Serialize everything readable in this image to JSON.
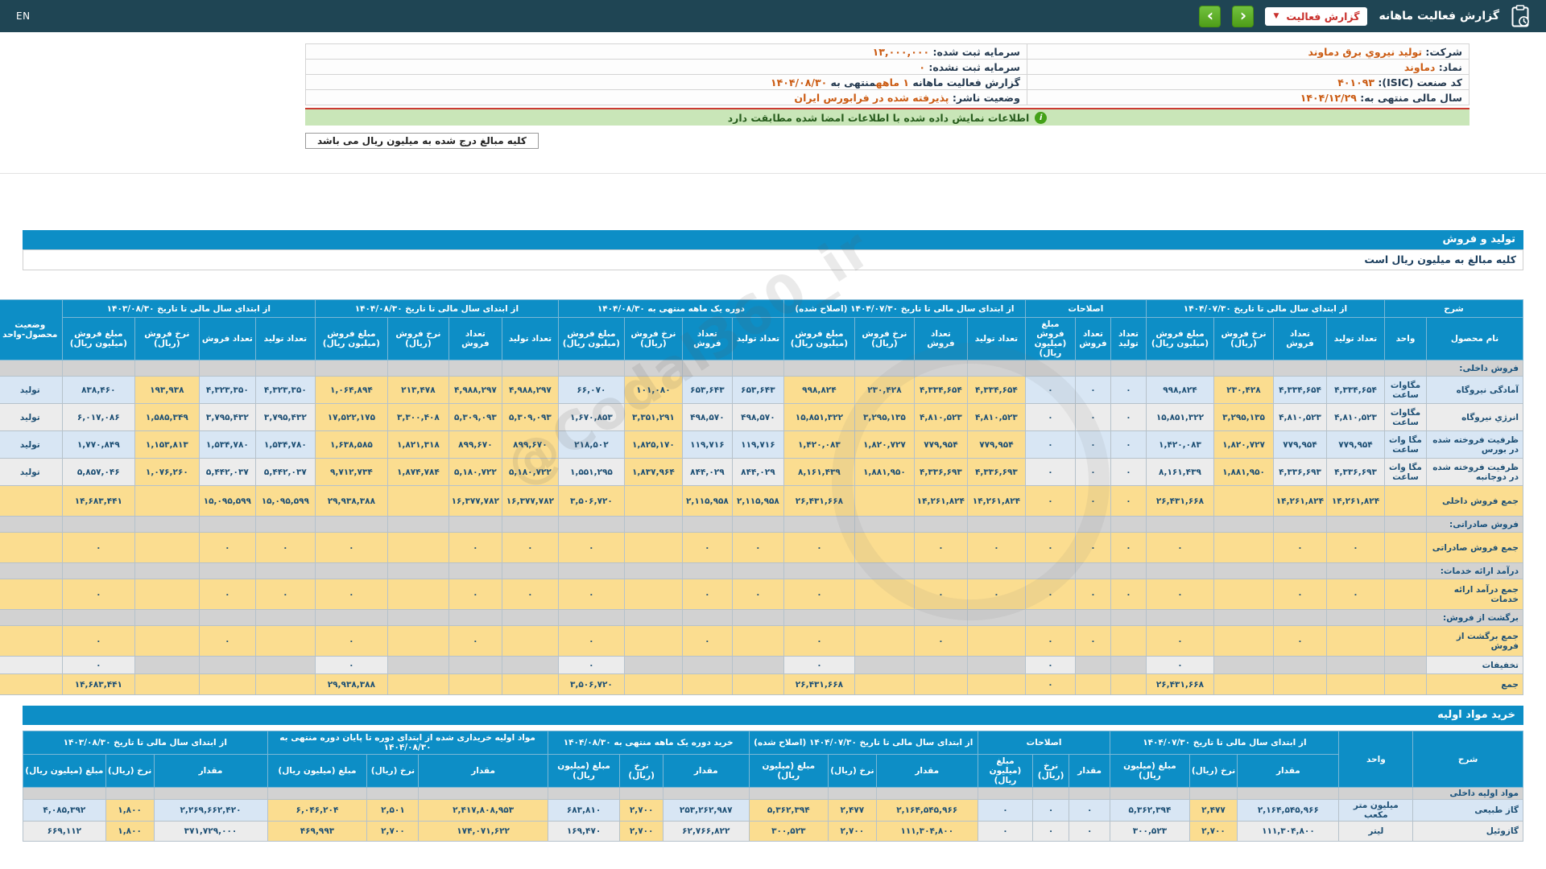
{
  "topbar": {
    "en": "EN",
    "title": "گزارش فعالیت ماهانه",
    "dropdown_label": "گزارش فعالیت",
    "dropdown_caret": "▼",
    "prev_label": "‹",
    "next_label": "›"
  },
  "info": {
    "rows": [
      {
        "right": [
          {
            "text": "شرکت:  ",
            "style": "label"
          },
          {
            "text": "تولید نیروي برق دماوند",
            "style": "value"
          }
        ],
        "left": [
          {
            "text": "سرمایه ثبت شده:  ",
            "style": "label"
          },
          {
            "text": "۱۳,۰۰۰,۰۰۰",
            "style": "value"
          }
        ]
      },
      {
        "right": [
          {
            "text": "نماد:  ",
            "style": "label"
          },
          {
            "text": "دماوند",
            "style": "value"
          }
        ],
        "left": [
          {
            "text": "سرمایه ثبت نشده:  ",
            "style": "label"
          },
          {
            "text": "۰",
            "style": "value"
          }
        ]
      },
      {
        "right": [
          {
            "text": "کد صنعت (ISIC):  ",
            "style": "label"
          },
          {
            "text": "۴۰۱۰۹۳",
            "style": "value"
          }
        ],
        "left": [
          {
            "text": "گزارش فعالیت ماهانه ",
            "style": "label"
          },
          {
            "text": "۱ ماهه",
            "style": "value"
          },
          {
            "text": "منتهی به ",
            "style": "label"
          },
          {
            "text": "۱۴۰۴/۰۸/۳۰",
            "style": "value"
          }
        ]
      },
      {
        "right": [
          {
            "text": "سال مالی منتهی به:  ",
            "style": "label"
          },
          {
            "text": "۱۴۰۴/۱۲/۲۹",
            "style": "value"
          }
        ],
        "left": [
          {
            "text": "وضعیت ناشر:  ",
            "style": "label"
          },
          {
            "text": "پذیرفته شده در فرابورس ایران",
            "style": "value"
          }
        ]
      }
    ]
  },
  "banner": {
    "icon": "i",
    "text": "اطلاعات نمایش داده شده با اطلاعات امضا شده مطابقت دارد"
  },
  "note_box": "کلیه مبالغ درج شده به میلیون ریال می باشد",
  "watermark": "@Codal360_ir",
  "colors": {
    "topbar": "#1f4554",
    "accent_blue": "#0d8ec6",
    "highlight_yellow": "#fbdd90",
    "stripe_blue": "#d8e6f4",
    "stripe_gray": "#ececec",
    "section_gray": "#d2d2d2",
    "banner_green": "#c9e6b8",
    "button_green": "#55a519",
    "alert_red": "#cc3b33",
    "value_orange": "#cb5c14"
  },
  "production_table": {
    "title": "تولید و فروش",
    "note": "کلیه مبالغ به میلیون ریال است",
    "header": {
      "sharh": "شرح",
      "product": "نام محصول",
      "unit": "واحد",
      "status": "وضعیت محصول-واحد",
      "sub": {
        "prod": "تعداد تولید",
        "sold": "تعداد فروش",
        "rate": "نرخ فروش (ریال)",
        "amt": "مبلغ فروش (میلیون ریال)"
      },
      "groups": [
        {
          "label": "از ابتدای سال مالی تا تاریخ ۱۴۰۴/۰۷/۳۰",
          "cols": [
            "prod",
            "sold",
            "rate",
            "amt"
          ],
          "yellow": [
            "rate"
          ]
        },
        {
          "label": "اصلاحات",
          "cols": [
            "prod",
            "sold",
            "amt"
          ],
          "yellow": []
        },
        {
          "label": "از ابتدای سال مالی تا تاریخ ۱۴۰۴/۰۷/۳۰ (اصلاح شده)",
          "cols": [
            "prod",
            "sold",
            "rate",
            "amt"
          ],
          "yellow": [
            "prod",
            "sold",
            "rate",
            "amt"
          ]
        },
        {
          "label": "دوره یک ماهه منتهی به ۱۴۰۴/۰۸/۳۰",
          "cols": [
            "prod",
            "sold",
            "rate",
            "amt"
          ],
          "yellow": [
            "rate"
          ]
        },
        {
          "label": "از ابتدای سال مالی تا تاریخ ۱۴۰۴/۰۸/۳۰",
          "cols": [
            "prod",
            "sold",
            "rate",
            "amt"
          ],
          "yellow": [
            "prod",
            "sold",
            "rate",
            "amt"
          ]
        },
        {
          "label": "از ابتدای سال مالی تا تاریخ ۱۴۰۳/۰۸/۳۰",
          "cols": [
            "prod",
            "sold",
            "rate",
            "amt"
          ],
          "yellow": [
            "rate"
          ]
        }
      ]
    },
    "rows": [
      {
        "type": "section",
        "name": "فروش داخلی:"
      },
      {
        "type": "data",
        "name": "آمادگی نیروگاه",
        "unit": "مگاوات ساعت",
        "status": "تولید",
        "cells": [
          "۴,۳۳۴,۶۵۴",
          "۴,۳۳۴,۶۵۴",
          "۲۳۰,۴۲۸",
          "۹۹۸,۸۲۴",
          "۰",
          "۰",
          "۰",
          "۴,۳۳۴,۶۵۴",
          "۴,۳۳۴,۶۵۴",
          "۲۳۰,۴۲۸",
          "۹۹۸,۸۲۴",
          "۶۵۳,۶۴۳",
          "۶۵۳,۶۴۳",
          "۱۰۱,۰۸۰",
          "۶۶,۰۷۰",
          "۴,۹۸۸,۲۹۷",
          "۴,۹۸۸,۲۹۷",
          "۲۱۳,۴۷۸",
          "۱,۰۶۴,۸۹۴",
          "۴,۳۲۳,۳۵۰",
          "۴,۳۲۳,۳۵۰",
          "۱۹۳,۹۳۸",
          "۸۳۸,۴۶۰"
        ]
      },
      {
        "type": "data",
        "name": "انرژي نیروگاه",
        "unit": "مگاوات ساعت",
        "status": "تولید",
        "cells": [
          "۴,۸۱۰,۵۲۳",
          "۴,۸۱۰,۵۲۳",
          "۳,۲۹۵,۱۳۵",
          "۱۵,۸۵۱,۳۲۲",
          "۰",
          "۰",
          "۰",
          "۴,۸۱۰,۵۲۳",
          "۴,۸۱۰,۵۲۳",
          "۳,۲۹۵,۱۳۵",
          "۱۵,۸۵۱,۳۲۲",
          "۴۹۸,۵۷۰",
          "۴۹۸,۵۷۰",
          "۳,۳۵۱,۲۹۱",
          "۱,۶۷۰,۸۵۳",
          "۵,۳۰۹,۰۹۳",
          "۵,۳۰۹,۰۹۳",
          "۳,۳۰۰,۴۰۸",
          "۱۷,۵۲۲,۱۷۵",
          "۳,۷۹۵,۴۳۲",
          "۳,۷۹۵,۴۳۲",
          "۱,۵۸۵,۳۴۹",
          "۶,۰۱۷,۰۸۶"
        ]
      },
      {
        "type": "data",
        "name": "ظرفیت فروخته شده در بورس",
        "unit": "مگا وات ساعت",
        "status": "تولید",
        "cells": [
          "۷۷۹,۹۵۴",
          "۷۷۹,۹۵۴",
          "۱,۸۲۰,۷۲۷",
          "۱,۴۲۰,۰۸۳",
          "۰",
          "۰",
          "۰",
          "۷۷۹,۹۵۴",
          "۷۷۹,۹۵۴",
          "۱,۸۲۰,۷۲۷",
          "۱,۴۲۰,۰۸۳",
          "۱۱۹,۷۱۶",
          "۱۱۹,۷۱۶",
          "۱,۸۲۵,۱۷۰",
          "۲۱۸,۵۰۲",
          "۸۹۹,۶۷۰",
          "۸۹۹,۶۷۰",
          "۱,۸۲۱,۳۱۸",
          "۱,۶۳۸,۵۸۵",
          "۱,۵۳۴,۷۸۰",
          "۱,۵۳۴,۷۸۰",
          "۱,۱۵۳,۸۱۳",
          "۱,۷۷۰,۸۴۹"
        ]
      },
      {
        "type": "data",
        "name": "ظرفیت فروخته شده در دوجانبه",
        "unit": "مگا وات ساعت",
        "status": "تولید",
        "cells": [
          "۴,۳۳۶,۶۹۳",
          "۴,۳۳۶,۶۹۳",
          "۱,۸۸۱,۹۵۰",
          "۸,۱۶۱,۴۳۹",
          "۰",
          "۰",
          "۰",
          "۴,۳۳۶,۶۹۳",
          "۴,۳۳۶,۶۹۳",
          "۱,۸۸۱,۹۵۰",
          "۸,۱۶۱,۴۳۹",
          "۸۴۴,۰۲۹",
          "۸۴۴,۰۲۹",
          "۱,۸۳۷,۹۶۴",
          "۱,۵۵۱,۲۹۵",
          "۵,۱۸۰,۷۲۲",
          "۵,۱۸۰,۷۲۲",
          "۱,۸۷۴,۷۸۴",
          "۹,۷۱۲,۷۳۴",
          "۵,۴۴۲,۰۳۷",
          "۵,۴۴۲,۰۳۷",
          "۱,۰۷۶,۲۶۰",
          "۵,۸۵۷,۰۴۶"
        ]
      },
      {
        "type": "sum",
        "name": "جمع فروش داخلی",
        "cells": [
          "۱۴,۲۶۱,۸۲۴",
          "۱۴,۲۶۱,۸۲۴",
          "",
          "۲۶,۴۳۱,۶۶۸",
          "۰",
          "۰",
          "۰",
          "۱۴,۲۶۱,۸۲۴",
          "۱۴,۲۶۱,۸۲۴",
          "",
          "۲۶,۴۳۱,۶۶۸",
          "۲,۱۱۵,۹۵۸",
          "۲,۱۱۵,۹۵۸",
          "",
          "۳,۵۰۶,۷۲۰",
          "۱۶,۳۷۷,۷۸۲",
          "۱۶,۳۷۷,۷۸۲",
          "",
          "۲۹,۹۳۸,۳۸۸",
          "۱۵,۰۹۵,۵۹۹",
          "۱۵,۰۹۵,۵۹۹",
          "",
          "۱۴,۶۸۳,۴۴۱"
        ]
      },
      {
        "type": "section",
        "name": "فروش صادراتی:"
      },
      {
        "type": "sum",
        "name": "جمع فروش صادراتی",
        "cells": [
          "۰",
          "۰",
          "",
          "۰",
          "۰",
          "۰",
          "۰",
          "۰",
          "۰",
          "",
          "۰",
          "۰",
          "۰",
          "",
          "۰",
          "۰",
          "۰",
          "",
          "۰",
          "۰",
          "۰",
          "",
          "۰"
        ]
      },
      {
        "type": "section",
        "name": "درآمد ارائه خدمات:"
      },
      {
        "type": "sum",
        "name": "جمع درآمد ارائه خدمات",
        "cells": [
          "۰",
          "۰",
          "",
          "۰",
          "۰",
          "۰",
          "۰",
          "۰",
          "۰",
          "",
          "۰",
          "۰",
          "۰",
          "",
          "۰",
          "۰",
          "۰",
          "",
          "۰",
          "۰",
          "۰",
          "",
          "۰"
        ]
      },
      {
        "type": "section",
        "name": "برگشت از فروش:"
      },
      {
        "type": "sum",
        "name": "جمع برگشت از فروش",
        "cells": [
          "",
          "۰",
          "",
          "۰",
          "",
          "۰",
          "۰",
          "",
          "۰",
          "",
          "۰",
          "",
          "۰",
          "",
          "۰",
          "",
          "۰",
          "",
          "۰",
          "",
          "۰",
          "",
          "۰"
        ]
      },
      {
        "type": "discount",
        "name": "تخفیفات",
        "cells": [
          "",
          "",
          "",
          "۰",
          "",
          "",
          "۰",
          "",
          "",
          "",
          "۰",
          "",
          "",
          "",
          "۰",
          "",
          "",
          "",
          "۰",
          "",
          "",
          "",
          "۰"
        ]
      },
      {
        "type": "sum",
        "name": "جمع",
        "cells": [
          "",
          "",
          "",
          "۲۶,۴۳۱,۶۶۸",
          "",
          "",
          "۰",
          "",
          "",
          "",
          "۲۶,۴۳۱,۶۶۸",
          "",
          "",
          "",
          "۳,۵۰۶,۷۲۰",
          "",
          "",
          "",
          "۲۹,۹۳۸,۳۸۸",
          "",
          "",
          "",
          "۱۴,۶۸۳,۴۴۱"
        ]
      }
    ]
  },
  "materials_table": {
    "title": "خرید مواد اولیه",
    "header": {
      "sharh": "شرح",
      "unit": "واحد",
      "sub": {
        "qty": "مقدار",
        "rate": "نرخ (ریال)",
        "amt": "مبلغ (میلیون ریال)"
      },
      "groups": [
        {
          "label": "از ابتدای سال مالی تا تاریخ ۱۴۰۴/۰۷/۳۰",
          "cols": [
            "qty",
            "rate",
            "amt"
          ],
          "yellow": [
            "rate"
          ]
        },
        {
          "label": "اصلاحات",
          "cols": [
            "qty",
            "rate",
            "amt"
          ],
          "yellow": []
        },
        {
          "label": "از ابتدای سال مالی تا تاریخ ۱۴۰۴/۰۷/۳۰ (اصلاح شده)",
          "cols": [
            "qty",
            "rate",
            "amt"
          ],
          "yellow": [
            "qty",
            "rate",
            "amt"
          ]
        },
        {
          "label": "خرید دوره یک ماهه منتهی به ۱۴۰۴/۰۸/۳۰",
          "cols": [
            "qty",
            "rate",
            "amt"
          ],
          "yellow": [
            "rate"
          ]
        },
        {
          "label": "مواد اولیه خریداری شده از ابتدای دوره تا پایان دوره منتهی به ۱۴۰۴/۰۸/۳۰",
          "cols": [
            "qty",
            "rate",
            "amt"
          ],
          "yellow": [
            "qty",
            "rate",
            "amt"
          ]
        },
        {
          "label": "از ابتدای سال مالی تا تاریخ ۱۴۰۳/۰۸/۳۰",
          "cols": [
            "qty",
            "rate",
            "amt"
          ],
          "yellow": [
            "rate"
          ]
        }
      ]
    },
    "rows": [
      {
        "type": "section",
        "name": "مواد اولیه داخلی"
      },
      {
        "type": "data",
        "name": "گاز طبیعی",
        "unit": "میلیون متر مکعب",
        "cells": [
          "۲,۱۶۴,۵۴۵,۹۶۶",
          "۲,۴۷۷",
          "۵,۳۶۲,۳۹۴",
          "۰",
          "۰",
          "۰",
          "۲,۱۶۴,۵۴۵,۹۶۶",
          "۲,۴۷۷",
          "۵,۳۶۲,۳۹۴",
          "۲۵۳,۲۶۲,۹۸۷",
          "۲,۷۰۰",
          "۶۸۳,۸۱۰",
          "۲,۴۱۷,۸۰۸,۹۵۳",
          "۲,۵۰۱",
          "۶,۰۴۶,۲۰۴",
          "۲,۲۶۹,۶۶۲,۴۲۰",
          "۱,۸۰۰",
          "۴,۰۸۵,۳۹۲"
        ]
      },
      {
        "type": "data",
        "name": "گازوئیل",
        "unit": "لیتر",
        "cells": [
          "۱۱۱,۳۰۴,۸۰۰",
          "۲,۷۰۰",
          "۳۰۰,۵۲۳",
          "۰",
          "۰",
          "۰",
          "۱۱۱,۳۰۴,۸۰۰",
          "۲,۷۰۰",
          "۳۰۰,۵۲۳",
          "۶۲,۷۶۶,۸۲۲",
          "۲,۷۰۰",
          "۱۶۹,۴۷۰",
          "۱۷۴,۰۷۱,۶۲۲",
          "۲,۷۰۰",
          "۴۶۹,۹۹۳",
          "۳۷۱,۷۲۹,۰۰۰",
          "۱,۸۰۰",
          "۶۶۹,۱۱۲"
        ]
      }
    ]
  }
}
